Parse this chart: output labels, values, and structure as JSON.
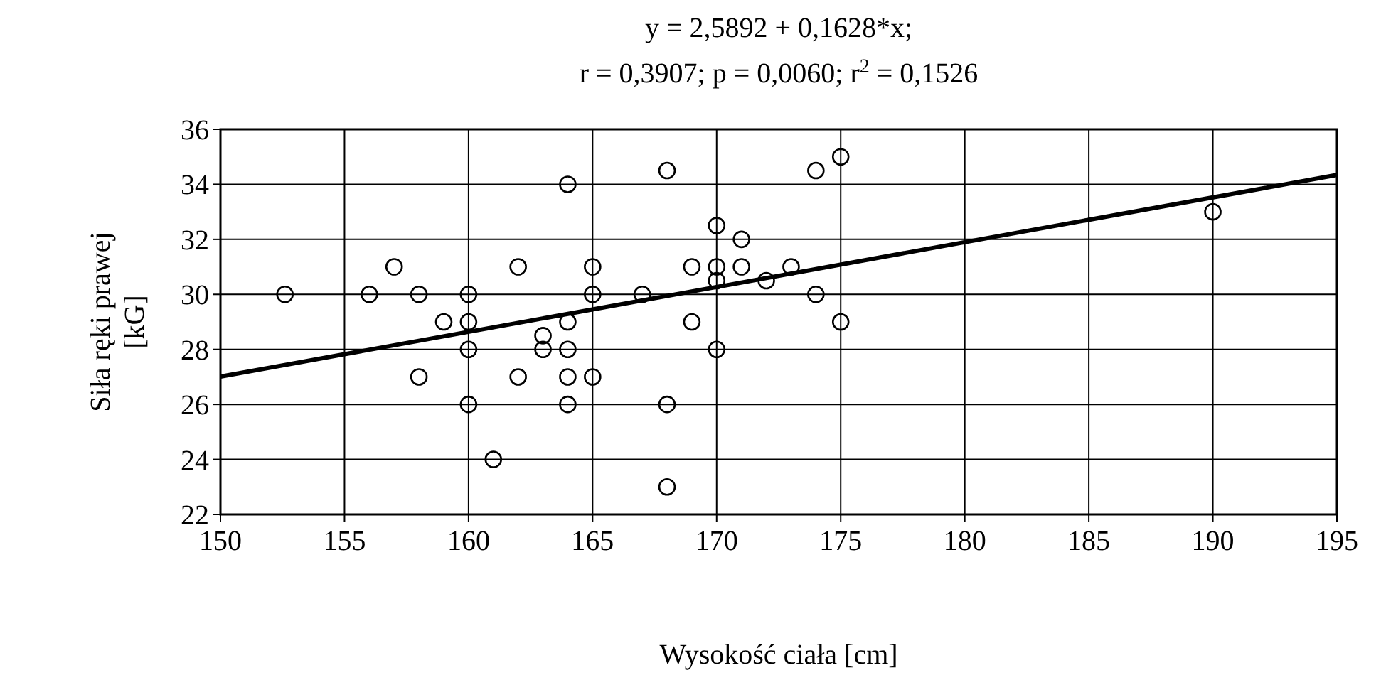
{
  "chart_data": {
    "type": "scatter",
    "title": "y = 2,5892 + 0,1628*x;",
    "subtitle": "r = 0,3907; p = 0,0060; r$^{2}$ = 0,1526",
    "xlabel": "Wysokość ciała [cm]",
    "ylabel": "Siła ręki prawej [kG]",
    "xlim": [
      150,
      195
    ],
    "ylim": [
      22,
      36
    ],
    "xticks": [
      150,
      155,
      160,
      165,
      170,
      175,
      180,
      185,
      190,
      195
    ],
    "yticks": [
      22,
      24,
      26,
      28,
      30,
      32,
      34,
      36
    ],
    "grid": true,
    "series": [
      {
        "marker": "circle",
        "color": "#000000",
        "x": [
          152.6,
          156,
          157,
          158,
          158,
          159,
          160,
          160,
          160,
          160,
          161,
          162,
          162,
          163,
          163,
          164,
          164,
          164,
          164,
          164,
          165,
          165,
          165,
          167,
          168,
          168,
          168,
          169,
          169,
          170,
          170,
          170,
          170,
          171,
          171,
          172,
          173,
          174,
          174,
          175,
          175,
          190
        ],
        "values": [
          30,
          30,
          31,
          30,
          27,
          29,
          30,
          29,
          28,
          26,
          24,
          31,
          27,
          28.5,
          28,
          34,
          29,
          28,
          27,
          26,
          31,
          30,
          27,
          30,
          34.5,
          26,
          23,
          31,
          29,
          32.5,
          31,
          30.5,
          28,
          32,
          31,
          30.5,
          31,
          34.5,
          30,
          35,
          29,
          33
        ]
      },
      {
        "type": "line",
        "color": "#000000",
        "x": [
          150,
          195
        ],
        "values": [
          27.01,
          34.34
        ]
      }
    ]
  }
}
